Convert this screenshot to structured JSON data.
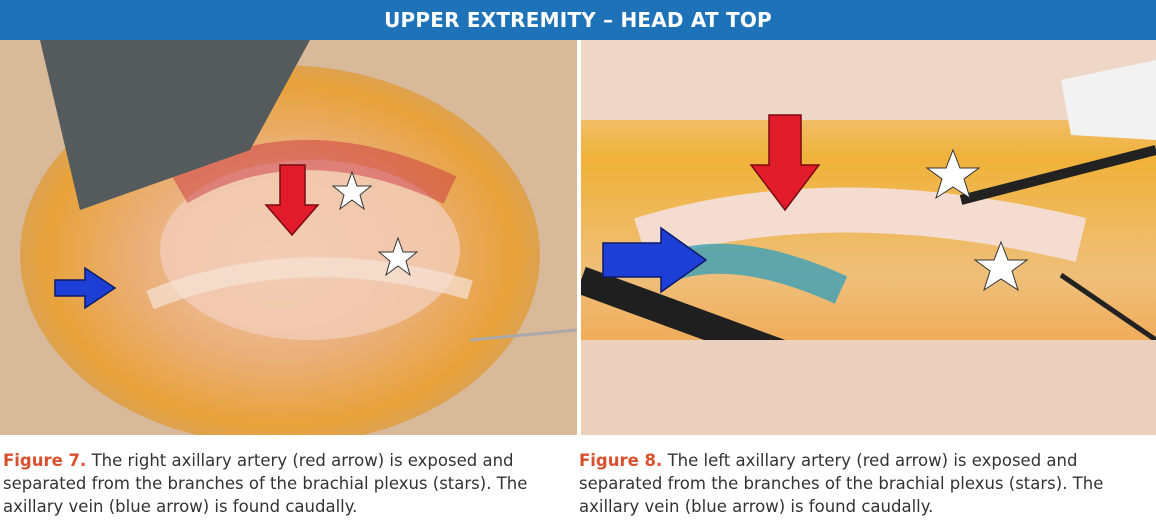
{
  "header": {
    "title": "UPPER EXTREMITY – HEAD AT TOP"
  },
  "figures": [
    {
      "label": "Figure 7.",
      "caption": "The right axillary artery (red arrow) is exposed and separated from the branches of the brachial plexus (stars). The axillary vein (blue arrow) is found caudally."
    },
    {
      "label": "Figure 8.",
      "caption": "The left axillary artery (red arrow) is exposed and separated from the branches of the brachial plexus (stars). The axillary vein (blue arrow) is found caudally."
    }
  ]
}
